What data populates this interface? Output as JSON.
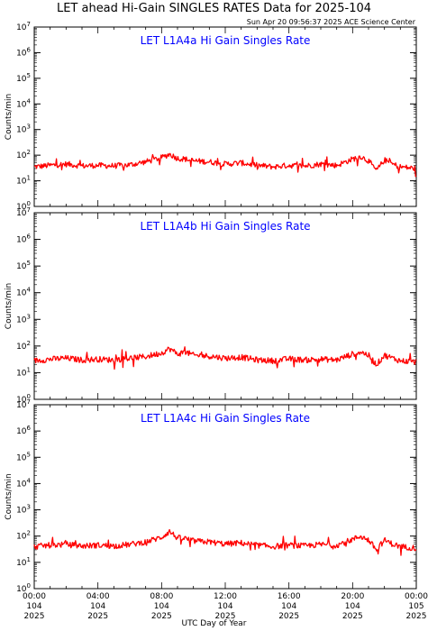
{
  "header": {
    "title": "LET ahead Hi-Gain SINGLES RATES Data for 2025-104",
    "timestamp": "Sun Apr 20 09:56:37 2025 ACE Science Center"
  },
  "xaxis": {
    "title": "UTC Day of Year",
    "range_hours": [
      0,
      24
    ],
    "ticks": [
      {
        "hour": 0,
        "time": "00:00",
        "doy": "104",
        "year": "2025"
      },
      {
        "hour": 4,
        "time": "04:00",
        "doy": "104",
        "year": "2025"
      },
      {
        "hour": 8,
        "time": "08:00",
        "doy": "104",
        "year": "2025"
      },
      {
        "hour": 12,
        "time": "12:00",
        "doy": "104",
        "year": "2025"
      },
      {
        "hour": 16,
        "time": "16:00",
        "doy": "104",
        "year": "2025"
      },
      {
        "hour": 20,
        "time": "20:00",
        "doy": "104",
        "year": "2025"
      },
      {
        "hour": 24,
        "time": "00:00",
        "doy": "105",
        "year": "2025"
      }
    ]
  },
  "colors": {
    "series": "#ff0000",
    "panel_title": "#0000ff",
    "axis": "#000000"
  },
  "chart_data": [
    {
      "type": "line",
      "title": "LET L1A4a Hi Gain Singles Rate",
      "ylabel": "Counts/min",
      "yscale": "log",
      "ylim": [
        1,
        10000000
      ],
      "yticks": [
        "10^0",
        "10^1",
        "10^2",
        "10^3",
        "10^4",
        "10^5",
        "10^6",
        "10^7"
      ],
      "x": [
        0,
        1,
        2,
        3,
        4,
        5,
        6,
        7,
        8,
        8.5,
        9,
        9.5,
        10,
        11,
        12,
        13,
        14,
        15,
        16,
        17,
        18,
        19,
        20,
        20.5,
        21,
        21.5,
        22,
        22.5,
        23,
        24
      ],
      "y": [
        35,
        40,
        45,
        38,
        40,
        38,
        42,
        55,
        80,
        110,
        75,
        70,
        60,
        55,
        45,
        50,
        40,
        35,
        40,
        38,
        45,
        40,
        70,
        90,
        60,
        25,
        65,
        45,
        35,
        30
      ]
    },
    {
      "type": "line",
      "title": "LET L1A4b Hi Gain Singles Rate",
      "ylabel": "Counts/min",
      "yscale": "log",
      "ylim": [
        1,
        10000000
      ],
      "yticks": [
        "10^0",
        "10^1",
        "10^2",
        "10^3",
        "10^4",
        "10^5",
        "10^6",
        "10^7"
      ],
      "x": [
        0,
        1,
        2,
        3,
        4,
        5,
        6,
        7,
        8,
        8.5,
        9,
        9.5,
        10,
        11,
        12,
        13,
        14,
        15,
        16,
        17,
        18,
        19,
        20,
        20.5,
        21,
        21.5,
        22,
        22.5,
        23,
        24
      ],
      "y": [
        28,
        32,
        35,
        30,
        32,
        30,
        35,
        40,
        55,
        80,
        50,
        60,
        45,
        42,
        35,
        38,
        30,
        28,
        33,
        30,
        32,
        30,
        50,
        60,
        45,
        20,
        45,
        35,
        28,
        25
      ]
    },
    {
      "type": "line",
      "title": "LET L1A4c Hi Gain Singles Rate",
      "ylabel": "Counts/min",
      "yscale": "log",
      "ylim": [
        1,
        10000000
      ],
      "yticks": [
        "10^0",
        "10^1",
        "10^2",
        "10^3",
        "10^4",
        "10^5",
        "10^6",
        "10^7"
      ],
      "x": [
        0,
        1,
        2,
        3,
        4,
        5,
        6,
        7,
        8,
        8.5,
        9,
        9.5,
        10,
        11,
        12,
        13,
        14,
        15,
        16,
        17,
        18,
        19,
        20,
        20.5,
        21,
        21.5,
        22,
        22.5,
        23,
        24
      ],
      "y": [
        40,
        45,
        48,
        42,
        45,
        42,
        48,
        60,
        90,
        150,
        85,
        80,
        65,
        60,
        50,
        55,
        45,
        40,
        45,
        42,
        48,
        45,
        75,
        100,
        70,
        30,
        70,
        50,
        40,
        35
      ]
    }
  ]
}
